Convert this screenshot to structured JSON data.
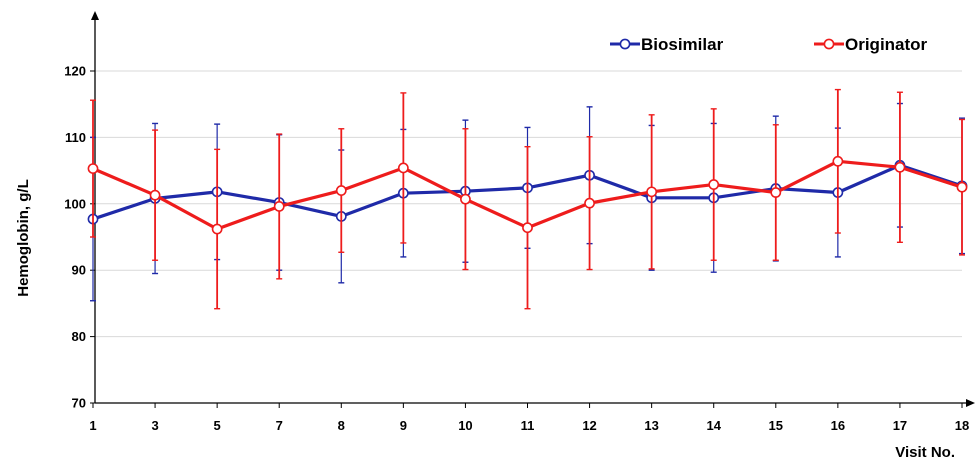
{
  "chart_data": {
    "type": "line",
    "xlabel": "Visit No.",
    "ylabel": "Hemoglobin, g/L",
    "categories": [
      "1",
      "3",
      "5",
      "7",
      "8",
      "9",
      "10",
      "11",
      "12",
      "13",
      "14",
      "15",
      "16",
      "17",
      "18"
    ],
    "ylim": [
      70,
      125
    ],
    "yticks": [
      70,
      80,
      90,
      100,
      110,
      120
    ],
    "grid": "horizontal",
    "legend_position": "top-right",
    "series": [
      {
        "name": "Biosimilar",
        "color": "#1f2aa8",
        "values": [
          97.7,
          100.8,
          101.8,
          100.2,
          98.1,
          101.6,
          101.9,
          102.4,
          104.3,
          100.9,
          100.9,
          102.3,
          101.7,
          105.8,
          102.7
        ],
        "error": [
          12.3,
          11.3,
          10.2,
          10.2,
          10.0,
          9.6,
          10.7,
          9.1,
          10.3,
          10.9,
          11.2,
          10.9,
          9.7,
          9.3,
          10.2
        ]
      },
      {
        "name": "Originator",
        "color": "#ee1c1c",
        "values": [
          105.3,
          101.3,
          96.2,
          99.6,
          102.0,
          105.4,
          100.7,
          96.4,
          100.1,
          101.8,
          102.9,
          101.7,
          106.4,
          105.5,
          102.5
        ],
        "error": [
          10.3,
          9.8,
          12.0,
          10.9,
          9.3,
          11.3,
          10.6,
          12.2,
          10.0,
          11.6,
          11.4,
          10.2,
          10.8,
          11.3,
          10.2
        ]
      }
    ]
  }
}
